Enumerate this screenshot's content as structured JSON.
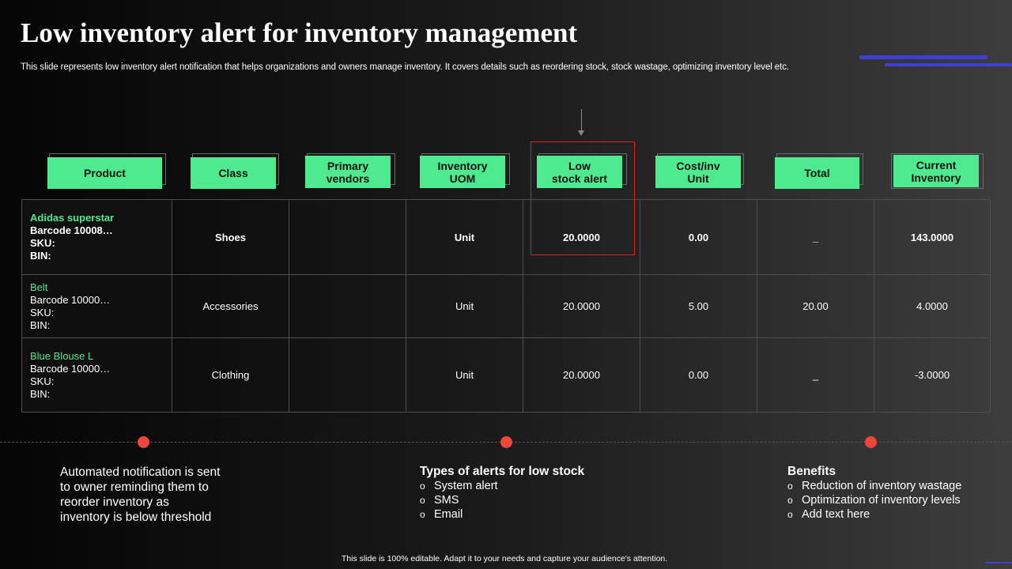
{
  "title": "Low inventory alert for inventory management",
  "subtitle": "This slide represents low inventory alert notification that helps organizations and owners manage inventory. It covers details such as reordering stock, stock wastage, optimizing inventory level etc.",
  "headers": [
    {
      "line1": "Product",
      "line2": ""
    },
    {
      "line1": "Class",
      "line2": ""
    },
    {
      "line1": "Primary",
      "line2": "vendors"
    },
    {
      "line1": "Inventory",
      "line2": "UOM"
    },
    {
      "line1": "Low",
      "line2": "stock alert"
    },
    {
      "line1": "Cost/inv",
      "line2": "Unit"
    },
    {
      "line1": "Total",
      "line2": ""
    },
    {
      "line1": "Current",
      "line2": "Inventory"
    }
  ],
  "rows": [
    {
      "product": "Adidas superstar",
      "barcode": "Barcode 10008…",
      "sku": "SKU:",
      "bin": "BIN:",
      "class": "Shoes",
      "vendor": "",
      "uom": "Unit",
      "low_stock": "20.0000",
      "cost": "0.00",
      "total": "_",
      "current": "143.0000"
    },
    {
      "product": "Belt",
      "barcode": "Barcode 10000…",
      "sku": "SKU:",
      "bin": "BIN:",
      "class": "Accessories",
      "vendor": "",
      "uom": "Unit",
      "low_stock": "20.0000",
      "cost": "5.00",
      "total": "20.00",
      "current": "4.0000"
    },
    {
      "product": "Blue Blouse L",
      "barcode": "Barcode 10000…",
      "sku": "SKU:",
      "bin": "BIN:",
      "class": "Clothing",
      "vendor": "",
      "uom": "Unit",
      "low_stock": "20.0000",
      "cost": "0.00",
      "total": "_",
      "current": "-3.0000"
    }
  ],
  "info_left": {
    "line1": "Automated notification is sent",
    "line2": "to owner reminding them to",
    "line3": "reorder inventory  as",
    "line4": "inventory  is below threshold"
  },
  "info_middle": {
    "heading": "Types of alerts for low stock",
    "items": [
      "System alert",
      "SMS",
      "Email"
    ]
  },
  "info_right": {
    "heading": "Benefits",
    "items": [
      "Reduction of inventory wastage",
      "Optimization of inventory levels",
      "Add text here"
    ]
  },
  "bullet_glyph": "o",
  "footer": "This slide is 100% editable.  Adapt it to your needs and capture your audience's attention.",
  "colors": {
    "accent_green": "#4dea8f",
    "alert_red": "#e02020",
    "dot_red": "#f0453b",
    "deco_blue": "#3f3fd0"
  }
}
